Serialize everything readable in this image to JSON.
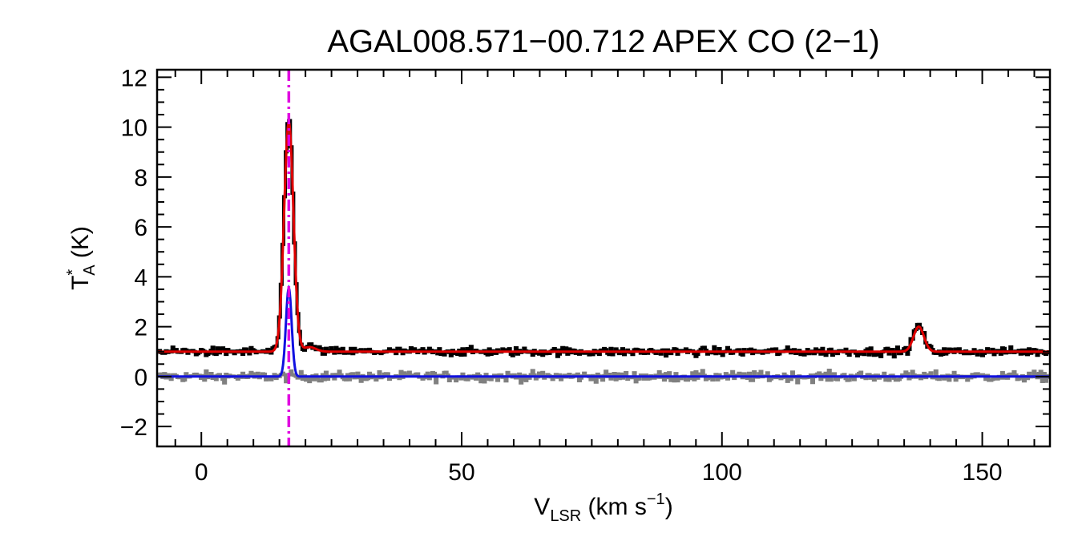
{
  "chart_data": {
    "type": "line",
    "title": "AGAL008.571−00.712  APEX CO (2−1)",
    "xlabel": {
      "main": "V",
      "sub": "LSR",
      "rest": " (km s",
      "sup": "−1",
      "close": ")"
    },
    "ylabel": {
      "main": "T",
      "sup": "*",
      "sub": "A",
      "rest": " (K)"
    },
    "xlim": [
      -8.5,
      163
    ],
    "ylim": [
      -2.8,
      12.3
    ],
    "xticks": [
      0,
      50,
      100,
      150
    ],
    "xtick_labels": [
      "0",
      "50",
      "100",
      "150"
    ],
    "yticks": [
      -2,
      0,
      2,
      4,
      6,
      8,
      10,
      12
    ],
    "ytick_labels": [
      "−2",
      "0",
      "2",
      "4",
      "6",
      "8",
      "10",
      "12"
    ],
    "vline": {
      "x": 16.8,
      "color": "#e000e0",
      "style": "dash-dot"
    },
    "series": [
      {
        "role": "observed-spectrum",
        "color": "#000000",
        "style": "histogram",
        "baseline": 1.0,
        "noise": 0.12,
        "components": [
          {
            "center": 16.8,
            "amplitude": 9.3,
            "sigma": 0.9
          },
          {
            "center": 20.8,
            "amplitude": 0.2,
            "sigma": 1.2
          },
          {
            "center": 137.8,
            "amplitude": 1.05,
            "sigma": 1.0
          }
        ]
      },
      {
        "role": "residual",
        "color": "#808080",
        "style": "histogram",
        "baseline": 0.0,
        "noise": 0.14,
        "components": []
      },
      {
        "role": "total-fit",
        "color": "#e00000",
        "style": "line",
        "baseline": 1.0,
        "noise": 0,
        "components": [
          {
            "center": 16.8,
            "amplitude": 9.2,
            "sigma": 0.9
          },
          {
            "center": 20.8,
            "amplitude": 0.18,
            "sigma": 1.2
          },
          {
            "center": 137.8,
            "amplitude": 1.0,
            "sigma": 1.0
          }
        ]
      },
      {
        "role": "component-fit",
        "color": "#1010e0",
        "style": "line",
        "baseline": 0.0,
        "noise": 0,
        "components": [
          {
            "center": 16.8,
            "amplitude": 3.55,
            "sigma": 0.55
          }
        ]
      }
    ]
  }
}
